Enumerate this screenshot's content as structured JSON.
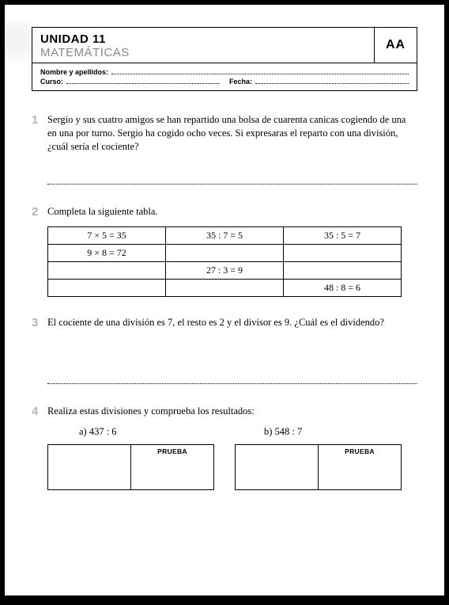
{
  "header": {
    "unit": "UNIDAD 11",
    "subject": "MATEMÁTICAS",
    "code": "AA",
    "name_label": "Nombre y apellidos:",
    "course_label": "Curso:",
    "date_label": "Fecha:"
  },
  "questions": {
    "q1": {
      "num": "1",
      "text": "Sergio y sus cuatro amigos se han repartido una bolsa de cuarenta canicas cogiendo de una en una por turno. Sergio ha cogido ocho veces. Si expresaras el reparto con una división, ¿cuál sería el cociente?"
    },
    "q2": {
      "num": "2",
      "text": "Completa la siguiente tabla.",
      "table": {
        "rows": [
          [
            "7 × 5 = 35",
            "35 : 7 = 5",
            "35 : 5 = 7"
          ],
          [
            "9 × 8 = 72",
            "",
            ""
          ],
          [
            "",
            "27 : 3 = 9",
            ""
          ],
          [
            "",
            "",
            "48 : 8 = 6"
          ]
        ]
      }
    },
    "q3": {
      "num": "3",
      "text": "El cociente de una división es 7, el resto es 2 y el divisor es 9. ¿Cuál es el dividendo?"
    },
    "q4": {
      "num": "4",
      "text": "Realiza estas divisiones y comprueba los resultados:",
      "a_label": "a)  437 : 6",
      "b_label": "b)  548 : 7",
      "prueba": "PRUEBA"
    }
  },
  "style": {
    "page_bg": "#ffffff",
    "border_color": "#000000",
    "qnum_color": "#b5b5b5",
    "subject_color": "#888888",
    "body_fontsize": 12.5,
    "header_fontsize": 15
  }
}
